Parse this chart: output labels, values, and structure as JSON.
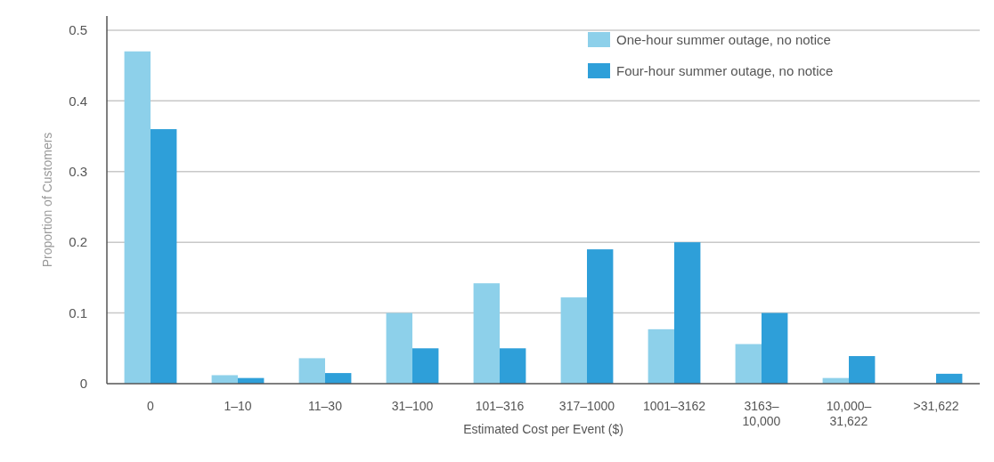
{
  "chart_data": {
    "type": "bar",
    "xlabel": "Estimated Cost per Event ($)",
    "ylabel": "Proportion of Customers",
    "categories": [
      "0",
      "1–10",
      "11–30",
      "31–100",
      "101–316",
      "317–1000",
      "1001–3162",
      "3163–\n10,000",
      "10,000–\n31,622",
      ">31,622"
    ],
    "series": [
      {
        "name": "One-hour summer outage, no notice",
        "color": "#8dd0ea",
        "values": [
          0.47,
          0.012,
          0.036,
          0.1,
          0.142,
          0.122,
          0.077,
          0.056,
          0.008,
          null
        ]
      },
      {
        "name": "Four-hour summer outage, no notice",
        "color": "#2e9fd9",
        "values": [
          0.36,
          0.008,
          0.015,
          0.05,
          0.05,
          0.19,
          0.2,
          0.1,
          0.039,
          0.014
        ]
      }
    ],
    "ylim": [
      0,
      0.52
    ],
    "yticks": [
      0,
      {
        "value": 0.1,
        "label": "0.1"
      },
      {
        "value": 0.2,
        "label": "0.2"
      },
      {
        "value": 0.3,
        "label": "0.3"
      },
      {
        "value": 0.4,
        "label": "0.4"
      },
      {
        "value": 0.5,
        "label": "0.5"
      }
    ],
    "grid": "y",
    "legend": "top right"
  }
}
